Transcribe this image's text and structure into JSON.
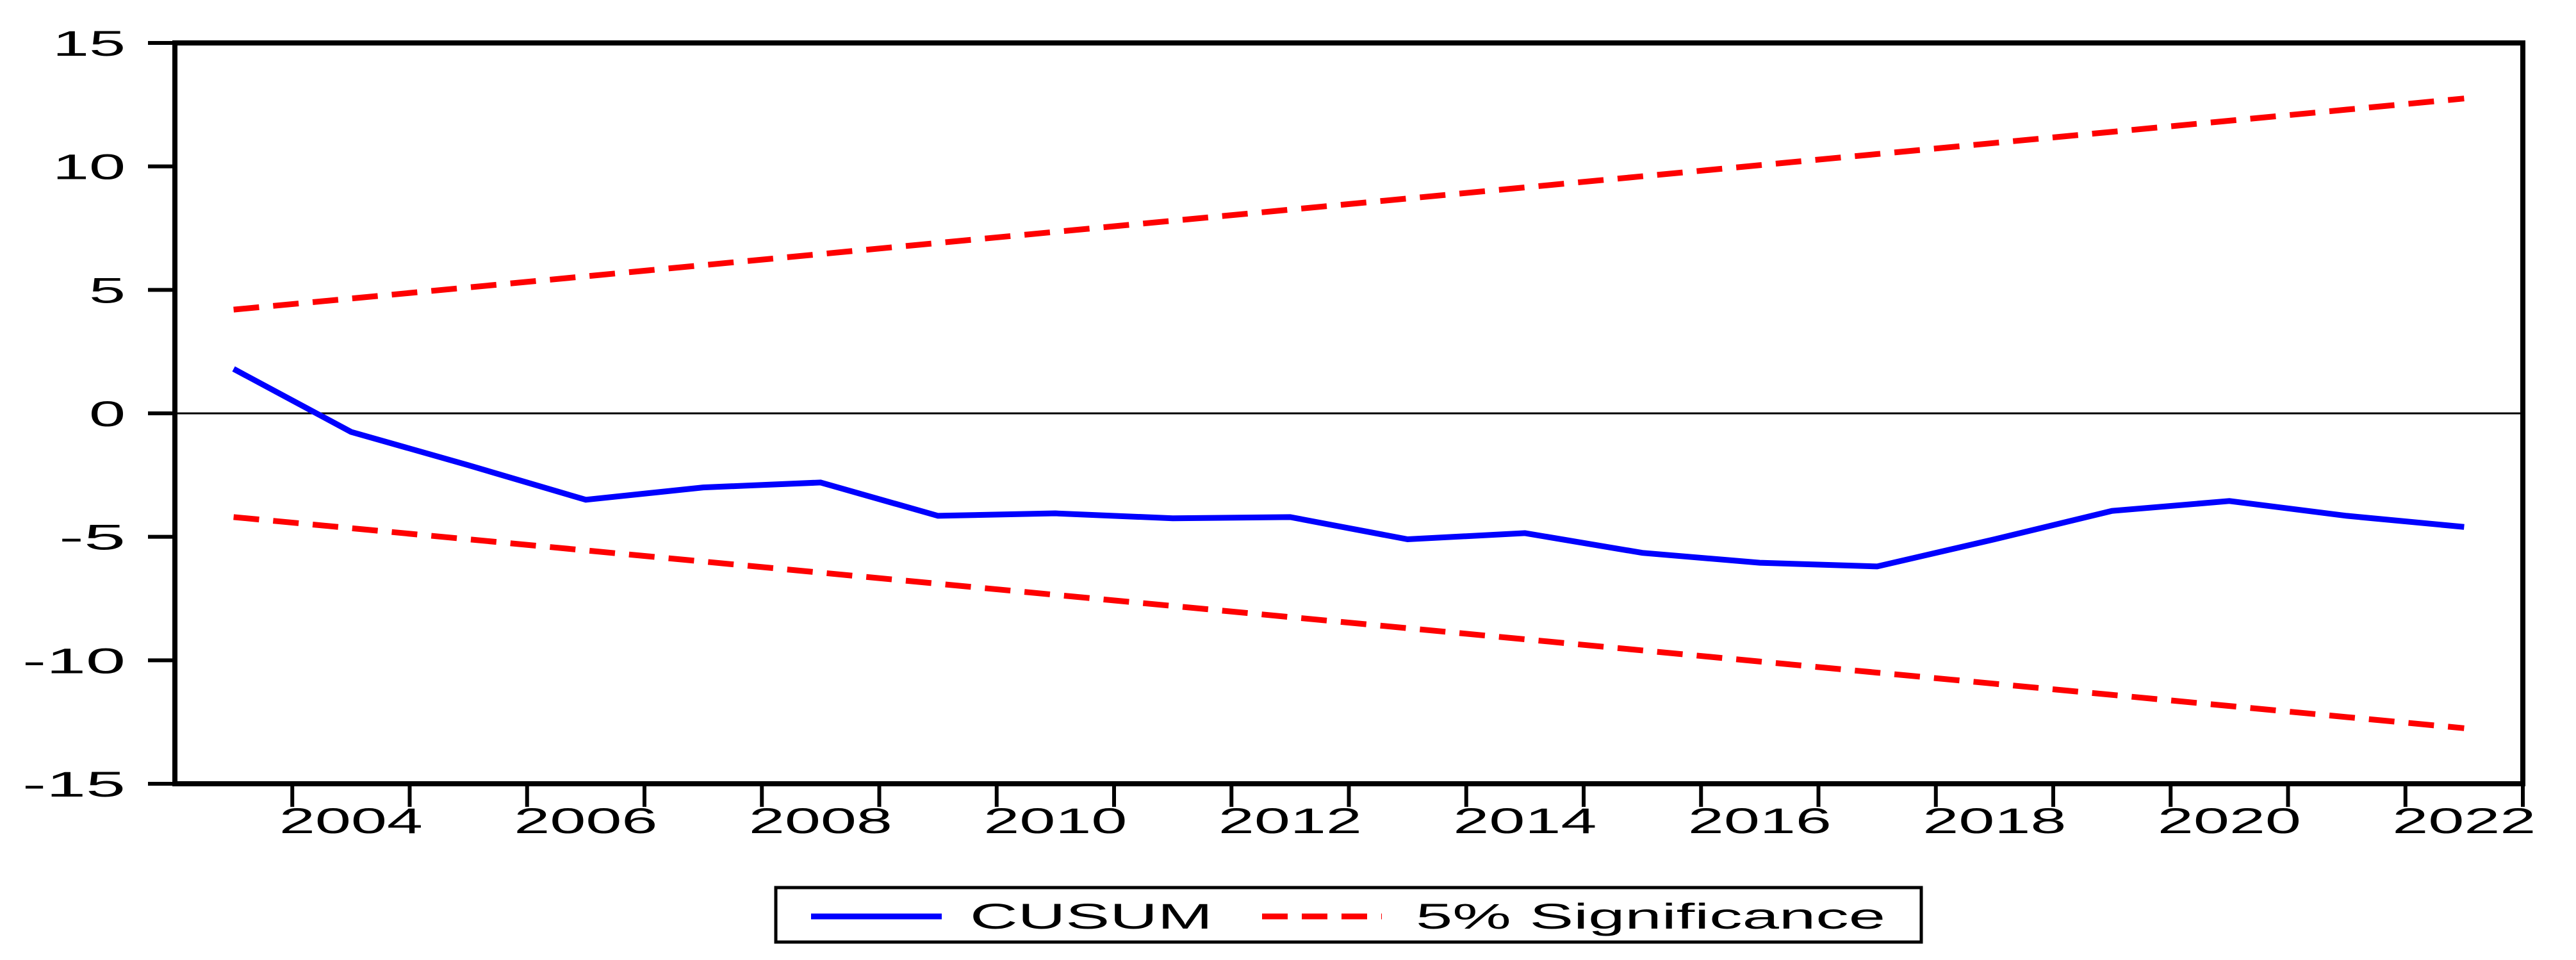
{
  "chart_data": {
    "type": "line",
    "title": "",
    "xlabel": "",
    "ylabel": "",
    "x": [
      2003,
      2004,
      2005,
      2006,
      2007,
      2008,
      2009,
      2010,
      2011,
      2012,
      2013,
      2014,
      2015,
      2016,
      2017,
      2018,
      2019,
      2020,
      2021,
      2022
    ],
    "series": [
      {
        "name": "CUSUM",
        "color": "#0000fe",
        "style": "solid",
        "values": [
          1.8,
          -0.75,
          -2.1,
          -3.5,
          -3.0,
          -2.8,
          -4.15,
          -4.05,
          -4.25,
          -4.2,
          -5.1,
          -4.85,
          -5.65,
          -6.05,
          -6.2,
          -5.1,
          -3.95,
          -3.55,
          -4.15,
          -4.6
        ]
      },
      {
        "name": "5% Significance (upper bound)",
        "color": "#fe0000",
        "style": "dashed",
        "values": [
          4.2,
          4.65,
          5.1,
          5.55,
          6.0,
          6.45,
          6.9,
          7.35,
          7.8,
          8.25,
          8.7,
          9.15,
          9.6,
          10.05,
          10.5,
          10.95,
          11.4,
          11.85,
          12.3,
          12.75
        ]
      },
      {
        "name": "5% Significance (lower bound)",
        "color": "#fe0000",
        "style": "dashed",
        "values": [
          -4.2,
          -4.65,
          -5.1,
          -5.55,
          -6.0,
          -6.45,
          -6.9,
          -7.35,
          -7.8,
          -8.25,
          -8.7,
          -9.15,
          -9.6,
          -10.05,
          -10.5,
          -10.95,
          -11.4,
          -11.85,
          -12.3,
          -12.75
        ]
      }
    ],
    "xlim": [
      2002.5,
      2022.5
    ],
    "ylim": [
      -15,
      15
    ],
    "y_ticks": [
      15,
      10,
      5,
      0,
      -5,
      -10,
      -15
    ],
    "x_tick_labels": [
      "2004",
      "2006",
      "2008",
      "2010",
      "2012",
      "2014",
      "2016",
      "2018",
      "2020",
      "2022"
    ],
    "x_labeled_years": [
      2004,
      2006,
      2008,
      2010,
      2012,
      2014,
      2016,
      2018,
      2020,
      2022
    ],
    "zero_line": true,
    "grid": false,
    "legend": {
      "position": "bottom-center",
      "boxed": true,
      "entries": [
        {
          "label": "CUSUM",
          "color": "#0000fe",
          "style": "solid"
        },
        {
          "label": "5% Significance",
          "color": "#fe0000",
          "style": "dashed"
        }
      ]
    },
    "colors": {
      "cusum_line": "#0000fe",
      "significance_line": "#fe0000",
      "axis_and_text": "#000000",
      "background": "#ffffff"
    }
  }
}
